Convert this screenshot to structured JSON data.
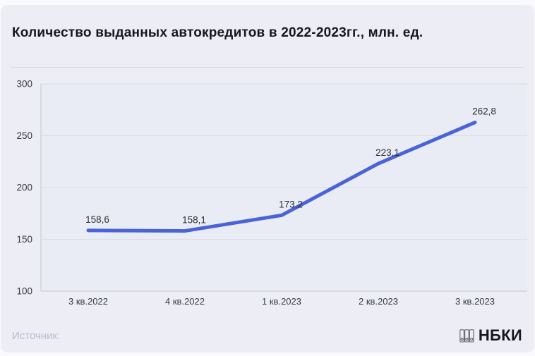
{
  "header": {
    "title": "Количество выданных автокредитов в 2022-2023гг., млн. ед."
  },
  "footer": {
    "source_label": "Источник:",
    "brand": "НБКИ",
    "logo_icon": "binders-icon"
  },
  "colors": {
    "card_bg": "#ecedf5",
    "plot_bg": "#e9ecf4",
    "line": "#4a63d9",
    "grid": "#d9dce5",
    "axis": "#c3c6d2",
    "title_text": "#17181d",
    "tick_text": "#393b42",
    "data_label_text": "#2b2d33",
    "source_text": "#b7bbd1",
    "brand_text": "#17181d"
  },
  "chart_data": {
    "type": "line",
    "title": "Количество выданных автокредитов в 2022-2023гг., млн. ед.",
    "categories": [
      "3 кв.2022",
      "4 кв.2022",
      "1 кв.2023",
      "2 кв.2023",
      "3 кв.2023"
    ],
    "values": [
      158.6,
      158.1,
      173.2,
      223.1,
      262.8
    ],
    "labels": [
      "158,6",
      "158,1",
      "173,2",
      "223,1",
      "262,8"
    ],
    "xlabel": "",
    "ylabel": "",
    "ylim": [
      100,
      300
    ],
    "yticks": [
      100,
      150,
      200,
      250,
      300
    ],
    "grid": true,
    "legend": false
  }
}
